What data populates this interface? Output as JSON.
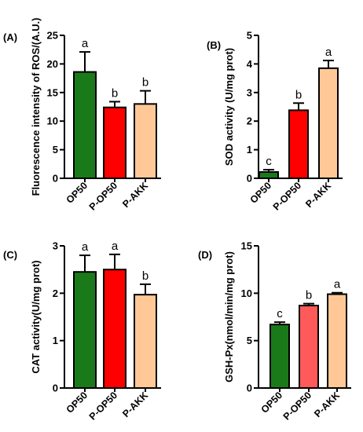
{
  "colors": {
    "OP50": "#1a7a1a",
    "P-OP50": "#ff0000",
    "P-AKK": "#ffc896",
    "P-OP50_D": "#ff5a5a"
  },
  "chart_data": [
    {
      "panel_label": "(A)",
      "type": "bar",
      "ylabel": "Fluorescence intensity of ROS/(A.U.)",
      "ylim": [
        0,
        25
      ],
      "yticks": [
        "0",
        "5",
        "10",
        "15",
        "20",
        "25"
      ],
      "categories": [
        "OP50",
        "P-OP50",
        "P-AKK"
      ],
      "values": [
        18.6,
        12.4,
        13.0
      ],
      "errors": [
        3.5,
        1.0,
        2.3
      ],
      "sig_letters": [
        "a",
        "b",
        "b"
      ]
    },
    {
      "panel_label": "(B)",
      "type": "bar",
      "ylabel": "SOD  activity (U/mg prot)",
      "ylim": [
        0,
        5
      ],
      "yticks": [
        "0",
        "1",
        "2",
        "3",
        "4",
        "5"
      ],
      "categories": [
        "OP50",
        "P-OP50",
        "P-AKK"
      ],
      "values": [
        0.22,
        2.38,
        3.85
      ],
      "errors": [
        0.08,
        0.25,
        0.27
      ],
      "sig_letters": [
        "c",
        "b",
        "a"
      ]
    },
    {
      "panel_label": "(C)",
      "type": "bar",
      "ylabel": "CAT activity(U/mg prot)",
      "ylim": [
        0,
        3
      ],
      "yticks": [
        "0",
        "1",
        "2",
        "3"
      ],
      "categories": [
        "OP50",
        "P-OP50",
        "P-AKK"
      ],
      "values": [
        2.45,
        2.5,
        1.97
      ],
      "errors": [
        0.35,
        0.32,
        0.22
      ],
      "sig_letters": [
        "a",
        "a",
        "b"
      ]
    },
    {
      "panel_label": "(D)",
      "type": "bar",
      "ylabel": "GSH-Px(nmol/min/mg prot)",
      "ylim": [
        0,
        15
      ],
      "yticks": [
        "0",
        "5",
        "10",
        "15"
      ],
      "categories": [
        "OP50",
        "P-OP50",
        "P-AKK"
      ],
      "values": [
        6.7,
        8.7,
        9.9
      ],
      "errors": [
        0.25,
        0.2,
        0.15
      ],
      "sig_letters": [
        "c",
        "b",
        "a"
      ]
    }
  ]
}
